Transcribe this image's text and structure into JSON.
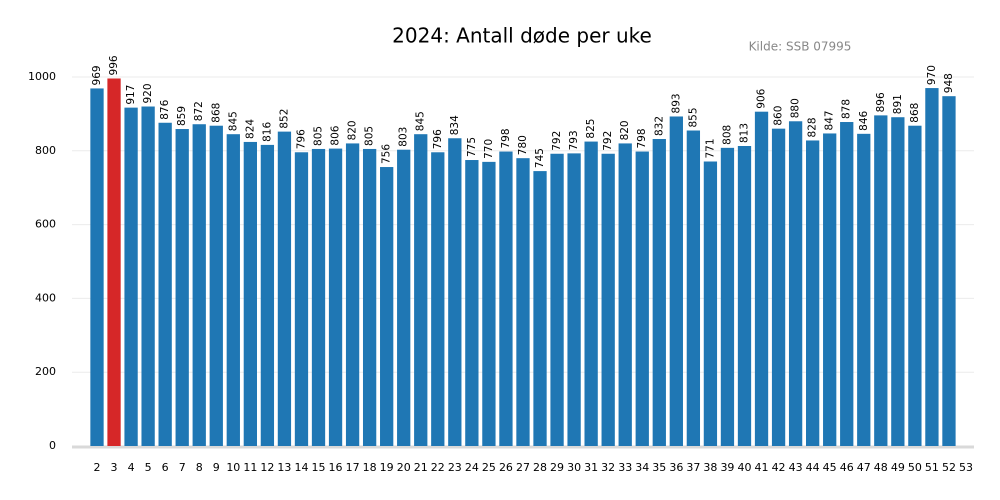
{
  "chart_data": {
    "type": "bar",
    "title": "2024: Antall døde per uke",
    "subtitle": "Kilde: SSB 07995",
    "categories": [
      "2",
      "3",
      "4",
      "5",
      "6",
      "7",
      "8",
      "9",
      "10",
      "11",
      "12",
      "13",
      "14",
      "15",
      "16",
      "17",
      "18",
      "19",
      "20",
      "21",
      "22",
      "23",
      "24",
      "25",
      "26",
      "27",
      "28",
      "29",
      "30",
      "31",
      "32",
      "33",
      "34",
      "35",
      "36",
      "37",
      "38",
      "39",
      "40",
      "41",
      "42",
      "43",
      "44",
      "45",
      "46",
      "47",
      "48",
      "49",
      "50",
      "51",
      "52",
      "53"
    ],
    "values": [
      969,
      996,
      917,
      920,
      876,
      859,
      872,
      868,
      845,
      824,
      816,
      852,
      796,
      805,
      806,
      820,
      805,
      756,
      803,
      845,
      796,
      834,
      775,
      770,
      798,
      780,
      745,
      792,
      793,
      825,
      792,
      820,
      798,
      832,
      893,
      855,
      771,
      808,
      813,
      906,
      860,
      880,
      828,
      847,
      878,
      846,
      896,
      891,
      868,
      970,
      948,
      null
    ],
    "colors": [
      "#1f77b4",
      "#d62728",
      "#1f77b4",
      "#1f77b4",
      "#1f77b4",
      "#1f77b4",
      "#1f77b4",
      "#1f77b4",
      "#1f77b4",
      "#1f77b4",
      "#1f77b4",
      "#1f77b4",
      "#1f77b4",
      "#1f77b4",
      "#1f77b4",
      "#1f77b4",
      "#1f77b4",
      "#1f77b4",
      "#1f77b4",
      "#1f77b4",
      "#1f77b4",
      "#1f77b4",
      "#1f77b4",
      "#1f77b4",
      "#1f77b4",
      "#1f77b4",
      "#1f77b4",
      "#1f77b4",
      "#1f77b4",
      "#1f77b4",
      "#1f77b4",
      "#1f77b4",
      "#1f77b4",
      "#1f77b4",
      "#1f77b4",
      "#1f77b4",
      "#1f77b4",
      "#1f77b4",
      "#1f77b4",
      "#1f77b4",
      "#1f77b4",
      "#1f77b4",
      "#1f77b4",
      "#1f77b4",
      "#1f77b4",
      "#1f77b4",
      "#1f77b4",
      "#1f77b4",
      "#1f77b4",
      "#1f77b4",
      "#1f77b4",
      null
    ],
    "ylim": [
      0,
      1000
    ],
    "yticks": [
      0,
      200,
      400,
      600,
      800,
      1000
    ],
    "grid": true
  }
}
